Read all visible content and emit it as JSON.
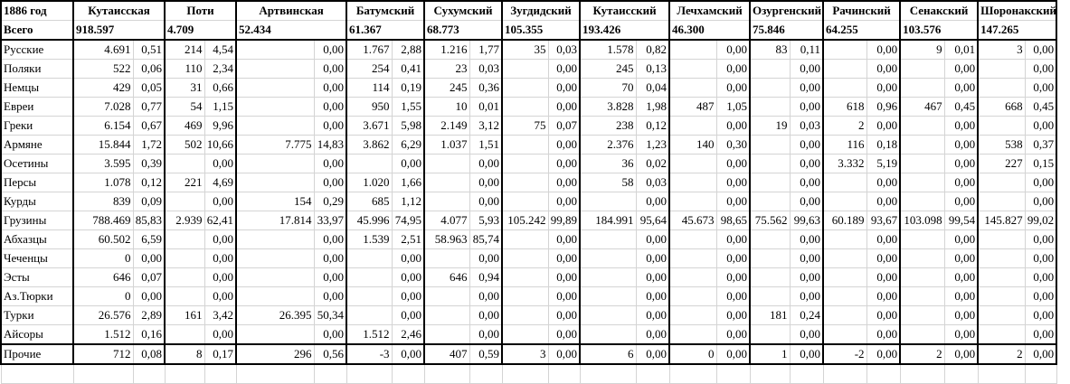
{
  "table": {
    "corner_label": "1886 год",
    "districts": [
      "Кутаисская",
      "Поти",
      "Артвинская",
      "Батумский",
      "Сухумский",
      "Зугдидский",
      "Кутаисский",
      "Лечхамский",
      "Озургенский",
      "Рачинский",
      "Сенакский",
      "Шоронакский"
    ],
    "total_label": "Всего",
    "totals": [
      "918.597",
      "4.709",
      "52.434",
      "61.367",
      "68.773",
      "105.355",
      "193.426",
      "46.300",
      "75.846",
      "64.255",
      "103.576",
      "147.265"
    ],
    "rows": [
      {
        "label": "Русские",
        "cells": [
          "4.691",
          "0,51",
          "214",
          "4,54",
          "",
          "0,00",
          "1.767",
          "2,88",
          "1.216",
          "1,77",
          "35",
          "0,03",
          "1.578",
          "0,82",
          "",
          "0,00",
          "83",
          "0,11",
          "",
          "0,00",
          "9",
          "0,01",
          "3",
          "0,00"
        ]
      },
      {
        "label": "Поляки",
        "cells": [
          "522",
          "0,06",
          "110",
          "2,34",
          "",
          "0,00",
          "254",
          "0,41",
          "23",
          "0,03",
          "",
          "0,00",
          "245",
          "0,13",
          "",
          "0,00",
          "",
          "0,00",
          "",
          "0,00",
          "",
          "0,00",
          "",
          "0,00"
        ]
      },
      {
        "label": "Немцы",
        "cells": [
          "429",
          "0,05",
          "31",
          "0,66",
          "",
          "0,00",
          "114",
          "0,19",
          "245",
          "0,36",
          "",
          "0,00",
          "70",
          "0,04",
          "",
          "0,00",
          "",
          "0,00",
          "",
          "0,00",
          "",
          "0,00",
          "",
          "0,00"
        ]
      },
      {
        "label": "Евреи",
        "cells": [
          "7.028",
          "0,77",
          "54",
          "1,15",
          "",
          "0,00",
          "950",
          "1,55",
          "10",
          "0,01",
          "",
          "0,00",
          "3.828",
          "1,98",
          "487",
          "1,05",
          "",
          "0,00",
          "618",
          "0,96",
          "467",
          "0,45",
          "668",
          "0,45"
        ]
      },
      {
        "label": "Греки",
        "cells": [
          "6.154",
          "0,67",
          "469",
          "9,96",
          "",
          "0,00",
          "3.671",
          "5,98",
          "2.149",
          "3,12",
          "75",
          "0,07",
          "238",
          "0,12",
          "",
          "0,00",
          "19",
          "0,03",
          "2",
          "0,00",
          "",
          "0,00",
          "",
          "0,00"
        ]
      },
      {
        "label": "Армяне",
        "cells": [
          "15.844",
          "1,72",
          "502",
          "10,66",
          "7.775",
          "14,83",
          "3.862",
          "6,29",
          "1.037",
          "1,51",
          "",
          "0,00",
          "2.376",
          "1,23",
          "140",
          "0,30",
          "",
          "0,00",
          "116",
          "0,18",
          "",
          "0,00",
          "538",
          "0,37"
        ]
      },
      {
        "label": "Осетины",
        "cells": [
          "3.595",
          "0,39",
          "",
          "0,00",
          "",
          "0,00",
          "",
          "0,00",
          "",
          "0,00",
          "",
          "0,00",
          "36",
          "0,02",
          "",
          "0,00",
          "",
          "0,00",
          "3.332",
          "5,19",
          "",
          "0,00",
          "227",
          "0,15"
        ]
      },
      {
        "label": "Персы",
        "cells": [
          "1.078",
          "0,12",
          "221",
          "4,69",
          "",
          "0,00",
          "1.020",
          "1,66",
          "",
          "0,00",
          "",
          "0,00",
          "58",
          "0,03",
          "",
          "0,00",
          "",
          "0,00",
          "",
          "0,00",
          "",
          "0,00",
          "",
          "0,00"
        ]
      },
      {
        "label": "Курды",
        "cells": [
          "839",
          "0,09",
          "",
          "0,00",
          "154",
          "0,29",
          "685",
          "1,12",
          "",
          "0,00",
          "",
          "0,00",
          "",
          "0,00",
          "",
          "0,00",
          "",
          "0,00",
          "",
          "0,00",
          "",
          "0,00",
          "",
          "0,00"
        ]
      },
      {
        "label": "Грузины",
        "cells": [
          "788.469",
          "85,83",
          "2.939",
          "62,41",
          "17.814",
          "33,97",
          "45.996",
          "74,95",
          "4.077",
          "5,93",
          "105.242",
          "99,89",
          "184.991",
          "95,64",
          "45.673",
          "98,65",
          "75.562",
          "99,63",
          "60.189",
          "93,67",
          "103.098",
          "99,54",
          "145.827",
          "99,02"
        ]
      },
      {
        "label": "Абхазцы",
        "cells": [
          "60.502",
          "6,59",
          "",
          "0,00",
          "",
          "0,00",
          "1.539",
          "2,51",
          "58.963",
          "85,74",
          "",
          "0,00",
          "",
          "0,00",
          "",
          "0,00",
          "",
          "0,00",
          "",
          "0,00",
          "",
          "0,00",
          "",
          "0,00"
        ]
      },
      {
        "label": "Чеченцы",
        "cells": [
          "0",
          "0,00",
          "",
          "0,00",
          "",
          "0,00",
          "",
          "0,00",
          "",
          "0,00",
          "",
          "0,00",
          "",
          "0,00",
          "",
          "0,00",
          "",
          "0,00",
          "",
          "0,00",
          "",
          "0,00",
          "",
          "0,00"
        ]
      },
      {
        "label": "Эсты",
        "cells": [
          "646",
          "0,07",
          "",
          "0,00",
          "",
          "0,00",
          "",
          "0,00",
          "646",
          "0,94",
          "",
          "0,00",
          "",
          "0,00",
          "",
          "0,00",
          "",
          "0,00",
          "",
          "0,00",
          "",
          "0,00",
          "",
          "0,00"
        ]
      },
      {
        "label": "Аз.Тюрки",
        "cells": [
          "0",
          "0,00",
          "",
          "0,00",
          "",
          "0,00",
          "",
          "0,00",
          "",
          "0,00",
          "",
          "0,00",
          "",
          "0,00",
          "",
          "0,00",
          "",
          "0,00",
          "",
          "0,00",
          "",
          "0,00",
          "",
          "0,00"
        ]
      },
      {
        "label": "Турки",
        "cells": [
          "26.576",
          "2,89",
          "161",
          "3,42",
          "26.395",
          "50,34",
          "",
          "0,00",
          "",
          "0,00",
          "",
          "0,00",
          "",
          "0,00",
          "",
          "0,00",
          "181",
          "0,24",
          "",
          "0,00",
          "",
          "0,00",
          "",
          "0,00"
        ]
      },
      {
        "label": "Айсоры",
        "cells": [
          "1.512",
          "0,16",
          "",
          "0,00",
          "",
          "0,00",
          "1.512",
          "2,46",
          "",
          "0,00",
          "",
          "0,00",
          "",
          "0,00",
          "",
          "0,00",
          "",
          "0,00",
          "",
          "0,00",
          "",
          "0,00",
          "",
          "0,00"
        ]
      },
      {
        "label": "Прочие",
        "cells": [
          "712",
          "0,08",
          "8",
          "0,17",
          "296",
          "0,56",
          "-3",
          "0,00",
          "407",
          "0,59",
          "3",
          "0,00",
          "6",
          "0,00",
          "0",
          "0,00",
          "1",
          "0,00",
          "-2",
          "0,00",
          "2",
          "0,00",
          "2",
          "0,00"
        ]
      }
    ]
  }
}
